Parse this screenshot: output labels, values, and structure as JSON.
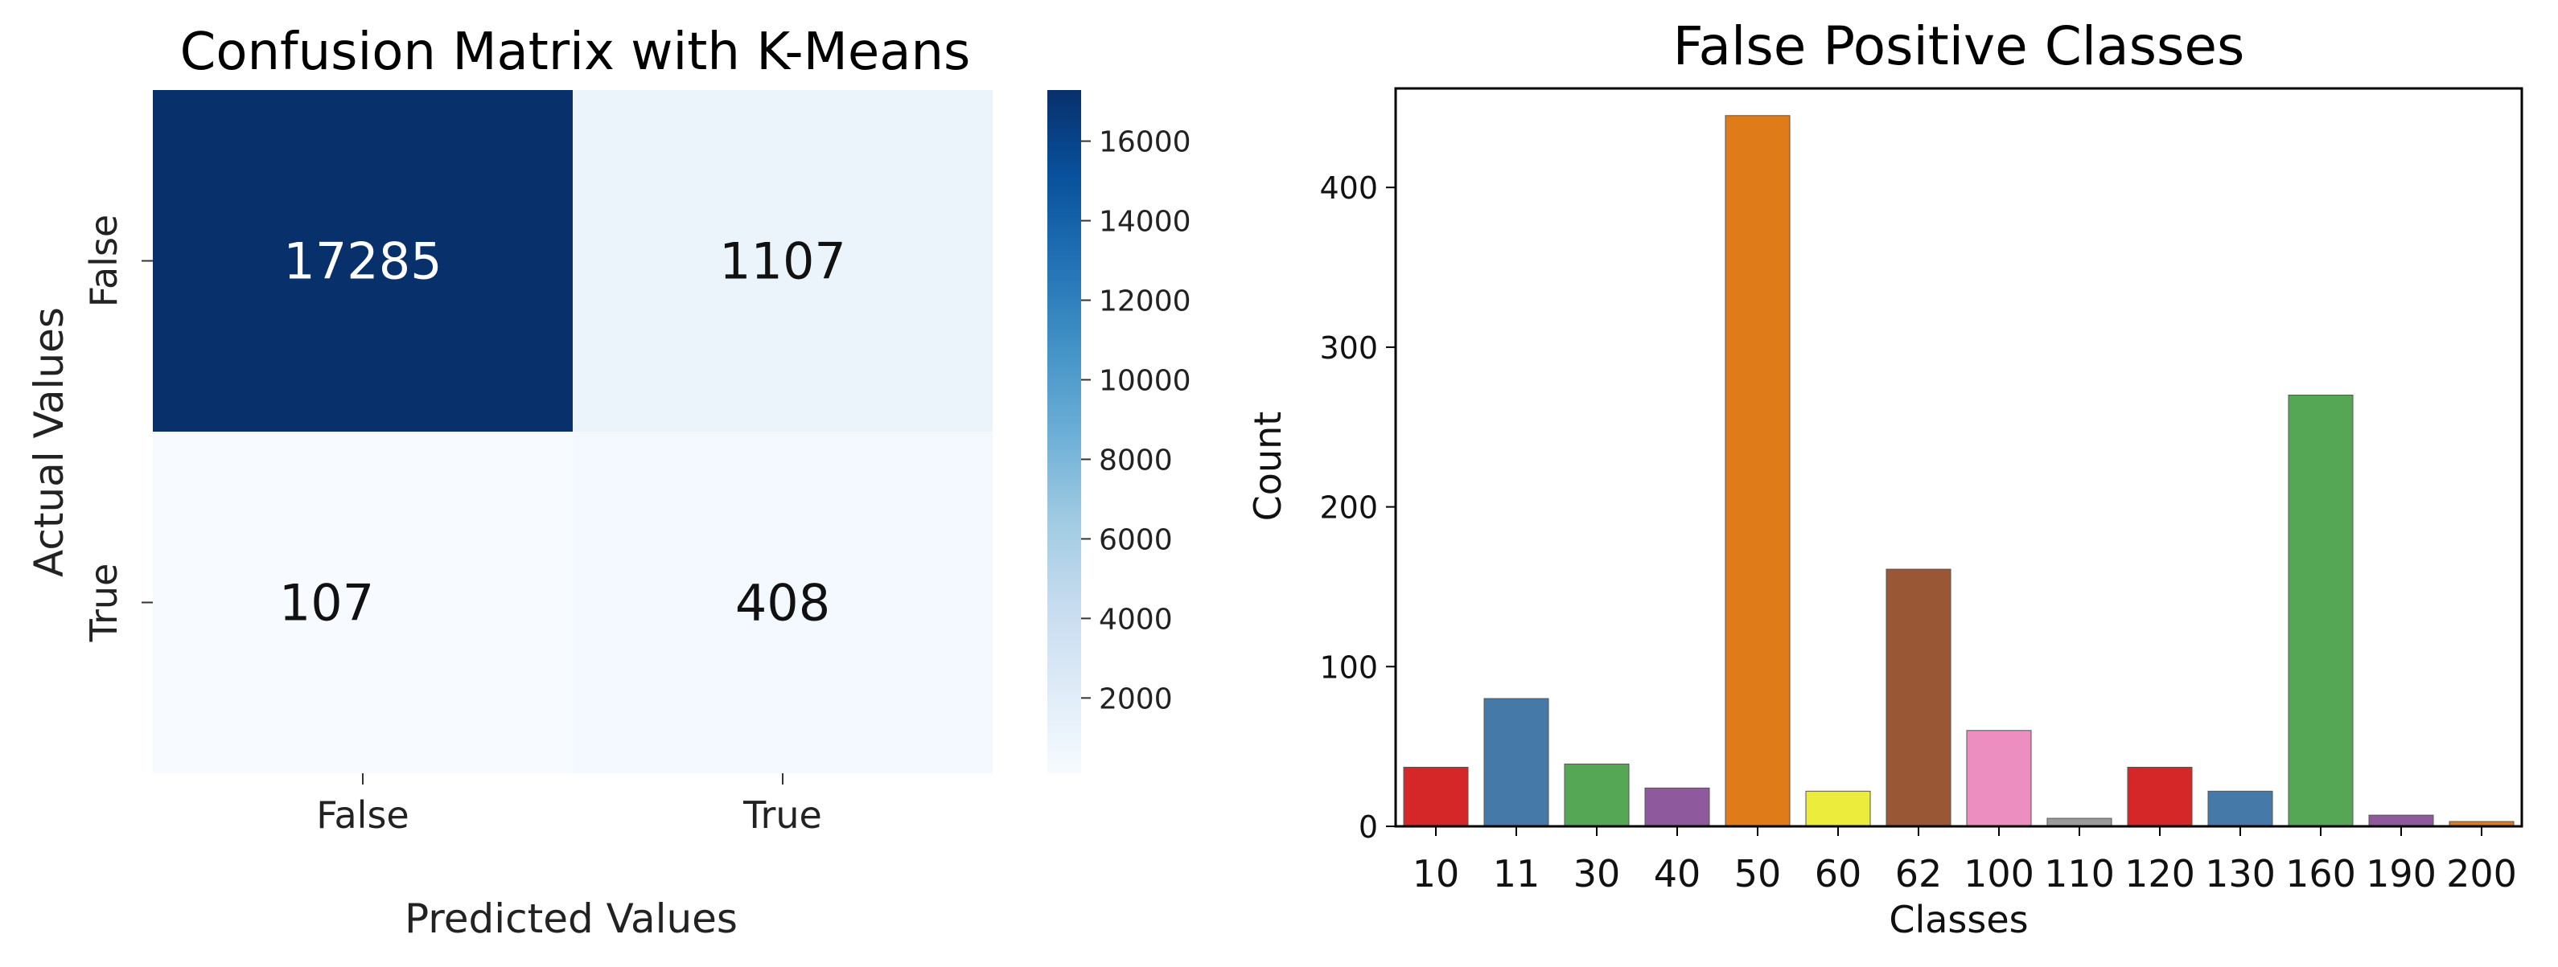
{
  "chart_data": [
    {
      "type": "heatmap",
      "title": "Confusion Matrix with K-Means",
      "xlabel": "Predicted Values",
      "ylabel": "Actual Values",
      "x_categories": [
        "False",
        "True"
      ],
      "y_categories": [
        "False",
        "True"
      ],
      "values": [
        [
          17285,
          1107
        ],
        [
          107,
          408
        ]
      ],
      "cell_labels": [
        [
          "17285",
          "1107"
        ],
        [
          "107",
          "408"
        ]
      ],
      "colormap": "Blues",
      "colorbar": {
        "ticks": [
          2000,
          4000,
          6000,
          8000,
          10000,
          12000,
          14000,
          16000
        ],
        "tick_labels": [
          "2000",
          "4000",
          "6000",
          "8000",
          "10000",
          "12000",
          "14000",
          "16000"
        ],
        "range": [
          107,
          17285
        ]
      }
    },
    {
      "type": "bar",
      "title": "False Positive Classes",
      "xlabel": "Classes",
      "ylabel": "Count",
      "categories": [
        "10",
        "11",
        "30",
        "40",
        "50",
        "60",
        "62",
        "100",
        "110",
        "120",
        "130",
        "160",
        "190",
        "200"
      ],
      "values": [
        37,
        80,
        39,
        24,
        445,
        22,
        161,
        60,
        5,
        37,
        22,
        270,
        7,
        3
      ],
      "colors": [
        "#d62728",
        "#4479a8",
        "#55a655",
        "#8e5a9d",
        "#e07b1a",
        "#ecec3c",
        "#995735",
        "#ec8fc0",
        "#9b9b9b",
        "#d62728",
        "#4479a8",
        "#55a655",
        "#8e5a9d",
        "#e07b1a"
      ],
      "ylim": [
        0,
        462
      ],
      "yticks": [
        0,
        100,
        200,
        300,
        400
      ],
      "grid": false
    }
  ]
}
